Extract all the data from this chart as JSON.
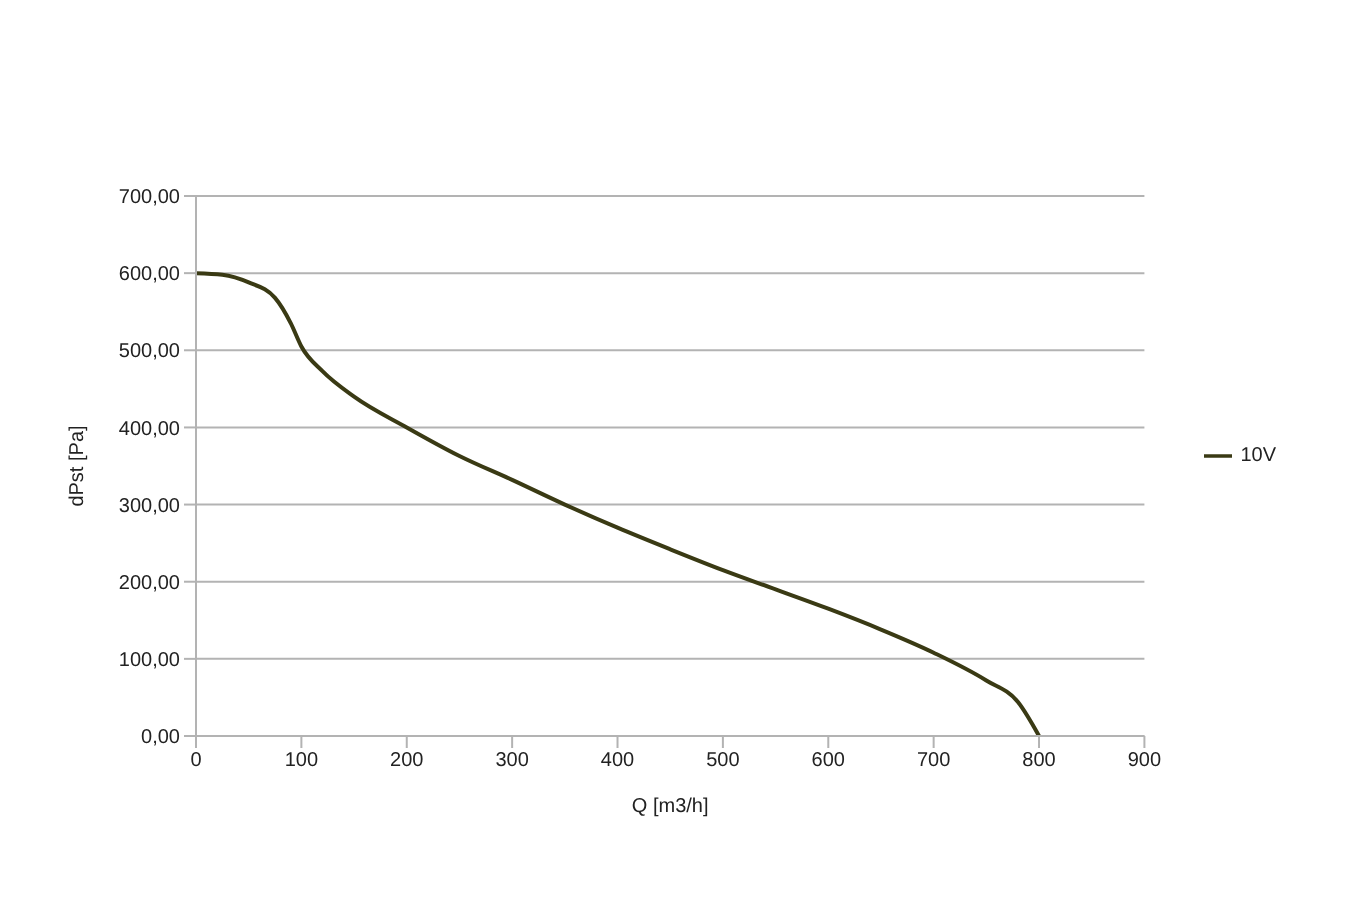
{
  "chart_data": {
    "type": "line",
    "xlabel": "Q [m3/h]",
    "ylabel": "dPst [Pa]",
    "x": [
      0,
      25,
      50,
      75,
      90,
      100,
      120,
      150,
      200,
      250,
      300,
      350,
      400,
      450,
      500,
      550,
      600,
      650,
      700,
      750,
      780,
      800
    ],
    "series": [
      {
        "name": "10V",
        "color": "#3a3a14",
        "values": [
          600,
          598,
          588,
          568,
          535,
          505,
          473,
          440,
          400,
          363,
          332,
          300,
          270,
          242,
          215,
          190,
          165,
          138,
          108,
          72,
          44,
          0
        ]
      }
    ],
    "xlim": [
      0,
      900
    ],
    "xticks": [
      0,
      100,
      200,
      300,
      400,
      500,
      600,
      700,
      800,
      900
    ],
    "ylim": [
      0,
      700
    ],
    "yticks": [
      {
        "value": 0,
        "label": "0,00"
      },
      {
        "value": 100,
        "label": "100,00"
      },
      {
        "value": 200,
        "label": "200,00"
      },
      {
        "value": 300,
        "label": "300,00"
      },
      {
        "value": 400,
        "label": "400,00"
      },
      {
        "value": 500,
        "label": "500,00"
      },
      {
        "value": 600,
        "label": "600,00"
      },
      {
        "value": 700,
        "label": "700,00"
      }
    ],
    "grid": "y",
    "legend": "right",
    "marker": "none",
    "line_style": "solid"
  }
}
